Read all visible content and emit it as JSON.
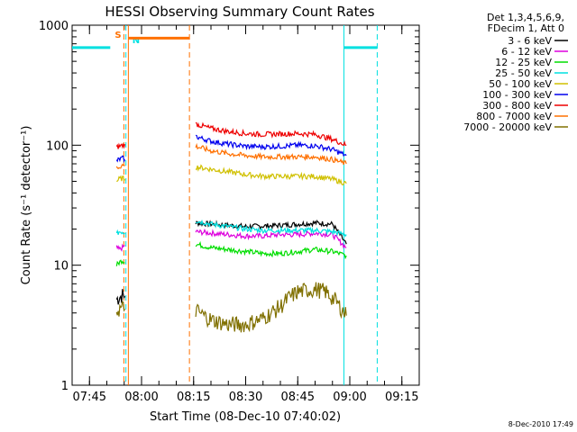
{
  "chart_data": {
    "type": "line",
    "title": "HESSI Observing Summary Count Rates",
    "xlabel": "Start Time (08-Dec-10 07:40:02)",
    "ylabel": "Count Rate (s⁻¹ detector⁻¹)",
    "yscale": "log",
    "ylim": [
      1,
      1000
    ],
    "xlim_minutes_after_0740": [
      0,
      100
    ],
    "x_ticks": [
      "07:45",
      "08:00",
      "08:15",
      "08:30",
      "08:45",
      "09:00",
      "09:15"
    ],
    "y_ticks": [
      "1",
      "10",
      "100",
      "1000"
    ],
    "legend_header": [
      "Det 1,3,4,5,6,9,",
      "FDecim 1, Att 0"
    ],
    "legend_position": "top-right",
    "series": [
      {
        "name": "3 - 6 keV",
        "color": "#000000",
        "segments": [
          {
            "x": [
              12.8,
              13.5,
              14.5,
              15.2
            ],
            "y": [
              5.2,
              5.4,
              5.6,
              5.5
            ]
          },
          {
            "x": [
              35.6,
              40,
              45,
              50,
              55,
              60,
              65,
              70,
              75,
              79
            ],
            "y": [
              22.5,
              22,
              21.5,
              21,
              21.2,
              21.5,
              22,
              22.5,
              22,
              15
            ]
          }
        ]
      },
      {
        "name": "6 - 12 keV",
        "color": "#dd00dd",
        "segments": [
          {
            "x": [
              12.8,
              13.5,
              14.5,
              15.2
            ],
            "y": [
              14,
              13.5,
              14,
              14.5
            ]
          },
          {
            "x": [
              35.6,
              40,
              45,
              50,
              55,
              60,
              65,
              70,
              75,
              79
            ],
            "y": [
              19,
              18.5,
              18,
              17.5,
              17.5,
              18,
              18,
              18.5,
              18,
              14
            ]
          }
        ]
      },
      {
        "name": "12 - 25 keV",
        "color": "#00dd00",
        "segments": [
          {
            "x": [
              12.8,
              13.5,
              14.5,
              15.2
            ],
            "y": [
              10,
              10.5,
              11,
              10.5
            ]
          },
          {
            "x": [
              35.6,
              40,
              45,
              50,
              55,
              60,
              65,
              70,
              75,
              79
            ],
            "y": [
              15,
              14,
              13.5,
              13,
              12.5,
              12.5,
              13,
              13.5,
              13,
              12
            ]
          }
        ]
      },
      {
        "name": "25 - 50 keV",
        "color": "#00e0e0",
        "segments": [
          {
            "x": [
              12.8,
              13.5,
              14.5,
              15.2
            ],
            "y": [
              18,
              19,
              19,
              18.5
            ]
          },
          {
            "x": [
              35.6,
              40,
              45,
              50,
              55,
              60,
              65,
              70,
              75,
              79
            ],
            "y": [
              23.5,
              22,
              21,
              20,
              19.5,
              19.5,
              19.5,
              19.5,
              19,
              18
            ]
          },
          {
            "x": [
              0,
              11.0
            ],
            "y": [
              650,
              650
            ]
          },
          {
            "x": [
              78.3,
              87.9
            ],
            "y": [
              650,
              650
            ]
          }
        ]
      },
      {
        "name": "50 - 100 keV",
        "color": "#d0c000",
        "segments": [
          {
            "x": [
              12.8,
              13.5,
              14.5,
              15.2
            ],
            "y": [
              50,
              52,
              53,
              52
            ]
          },
          {
            "x": [
              35.6,
              40,
              45,
              50,
              55,
              60,
              65,
              70,
              75,
              79
            ],
            "y": [
              66,
              63,
              60,
              57,
              55,
              55,
              55,
              55,
              52,
              48
            ]
          }
        ]
      },
      {
        "name": "100 - 300 keV",
        "color": "#0000ee",
        "segments": [
          {
            "x": [
              12.8,
              13.5,
              14.5,
              15.2
            ],
            "y": [
              74,
              76,
              78,
              76
            ]
          },
          {
            "x": [
              35.6,
              40,
              45,
              50,
              55,
              60,
              65,
              70,
              75,
              79
            ],
            "y": [
              118,
              108,
              102,
              98,
              97,
              98,
              100,
              99,
              92,
              82
            ]
          }
        ]
      },
      {
        "name": "300 - 800 keV",
        "color": "#ee0000",
        "segments": [
          {
            "x": [
              12.8,
              13.5,
              14.5,
              15.2
            ],
            "y": [
              95,
              98,
              100,
              102
            ]
          },
          {
            "x": [
              35.6,
              40,
              45,
              50,
              55,
              60,
              65,
              70,
              75,
              79
            ],
            "y": [
              150,
              138,
              130,
              125,
              123,
              124,
              125,
              123,
              112,
              100
            ]
          }
        ]
      },
      {
        "name": "800 - 7000 keV",
        "color": "#ff7000",
        "segments": [
          {
            "x": [
              12.8,
              13.5,
              14.5,
              15.2
            ],
            "y": [
              65,
              66,
              68,
              67
            ]
          },
          {
            "x": [
              35.6,
              40,
              45,
              50,
              55,
              60,
              65,
              70,
              75,
              79
            ],
            "y": [
              98,
              90,
              85,
              82,
              80,
              80,
              80,
              80,
              76,
              70
            ]
          },
          {
            "x": [
              16.2,
              33.8
            ],
            "y": [
              780,
              780
            ]
          }
        ]
      },
      {
        "name": "7000 - 20000 keV",
        "color": "#807000",
        "segments": [
          {
            "x": [
              12.8,
              13.5,
              14.5,
              15.2
            ],
            "y": [
              4.2,
              4.3,
              4.4,
              4.3
            ]
          },
          {
            "x": [
              35.6,
              38,
              40,
              45,
              50,
              55,
              60,
              62,
              65,
              70,
              73,
              76,
              79
            ],
            "y": [
              4.2,
              3.8,
              3.5,
              3.2,
              3.2,
              3.6,
              4.5,
              5.2,
              6,
              6.3,
              6,
              5,
              3.8
            ]
          }
        ]
      }
    ],
    "annotations": [
      {
        "text": "S",
        "x": 14.9,
        "color": "#ff7000"
      },
      {
        "text": "N",
        "x": 16.3,
        "color": "#00e0e0"
      }
    ],
    "vertical_markers": [
      {
        "x": 14.9,
        "color": "#ff7000",
        "style": "dashed"
      },
      {
        "x": 15.5,
        "color": "#00e0e0",
        "style": "dashed"
      },
      {
        "x": 16.2,
        "color": "#ff7000",
        "style": "solid"
      },
      {
        "x": 33.8,
        "color": "#ff7000",
        "style": "dashed"
      },
      {
        "x": 78.3,
        "color": "#00e0e0",
        "style": "solid"
      },
      {
        "x": 87.9,
        "color": "#00e0e0",
        "style": "dashed"
      }
    ]
  },
  "footer_stamp": "8-Dec-2010 17:49"
}
